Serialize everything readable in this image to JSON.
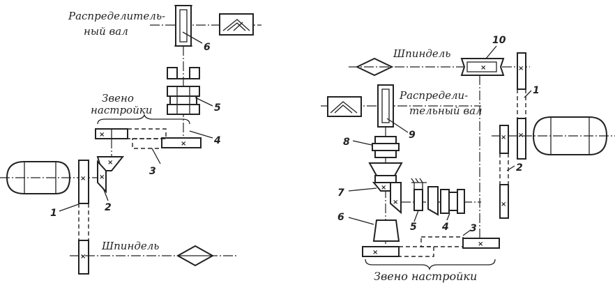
{
  "left": {
    "cam_shaft_label_1": "Распределитель-",
    "cam_shaft_label_2": "ный вал",
    "tuning_label_1": "Звено",
    "tuning_label_2": "настройки",
    "spindle_label": "Шпиндель",
    "callouts": [
      "1",
      "2",
      "3",
      "4",
      "5",
      "6"
    ]
  },
  "right": {
    "spindle_label": "Шпиндель",
    "cam_shaft_label_1": "Распредели-",
    "cam_shaft_label_2": "тельный вал",
    "tuning_label": "Звено настройки",
    "callouts": [
      "1",
      "2",
      "3",
      "4",
      "5",
      "6",
      "7",
      "8",
      "9",
      "10"
    ]
  }
}
